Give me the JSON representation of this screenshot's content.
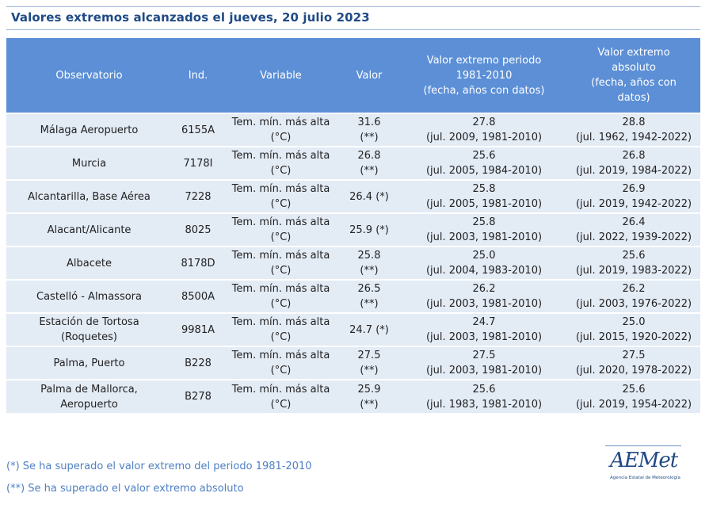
{
  "title": "Valores extremos alcanzados el jueves, 20 julio 2023",
  "headers": {
    "observatorio": "Observatorio",
    "ind": "Ind.",
    "variable": "Variable",
    "valor": "Valor",
    "periodo": [
      "Valor extremo periodo",
      "1981-2010",
      "(fecha, años con datos)"
    ],
    "absoluto": [
      "Valor extremo",
      "absoluto",
      "(fecha, años con",
      "datos)"
    ]
  },
  "rows": [
    {
      "obs": [
        "Málaga Aeropuerto"
      ],
      "ind": "6155A",
      "var": [
        "Tem. mín. más alta",
        "(°C)"
      ],
      "val": [
        "31.6",
        "(**)"
      ],
      "p1": [
        "27.8",
        "(jul. 2009, 1981-2010)"
      ],
      "p2": [
        "28.8",
        "(jul. 1962, 1942-2022)"
      ]
    },
    {
      "obs": [
        "Murcia"
      ],
      "ind": "7178I",
      "var": [
        "Tem. mín. más alta",
        "(°C)"
      ],
      "val": [
        "26.8",
        "(**)"
      ],
      "p1": [
        "25.6",
        "(jul. 2005, 1984-2010)"
      ],
      "p2": [
        "26.8",
        "(jul. 2019, 1984-2022)"
      ]
    },
    {
      "obs": [
        "Alcantarilla, Base Aérea"
      ],
      "ind": "7228",
      "var": [
        "Tem. mín. más alta",
        "(°C)"
      ],
      "val": [
        "26.4 (*)"
      ],
      "p1": [
        "25.8",
        "(jul. 2005, 1981-2010)"
      ],
      "p2": [
        "26.9",
        "(jul. 2019, 1942-2022)"
      ]
    },
    {
      "obs": [
        "Alacant/Alicante"
      ],
      "ind": "8025",
      "var": [
        "Tem. mín. más alta",
        "(°C)"
      ],
      "val": [
        "25.9 (*)"
      ],
      "p1": [
        "25.8",
        "(jul. 2003, 1981-2010)"
      ],
      "p2": [
        "26.4",
        "(jul. 2022, 1939-2022)"
      ]
    },
    {
      "obs": [
        "Albacete"
      ],
      "ind": "8178D",
      "var": [
        "Tem. mín. más alta",
        "(°C)"
      ],
      "val": [
        "25.8",
        "(**)"
      ],
      "p1": [
        "25.0",
        "(jul. 2004, 1983-2010)"
      ],
      "p2": [
        "25.6",
        "(jul. 2019, 1983-2022)"
      ]
    },
    {
      "obs": [
        "Castelló - Almassora"
      ],
      "ind": "8500A",
      "var": [
        "Tem. mín. más alta",
        "(°C)"
      ],
      "val": [
        "26.5",
        "(**)"
      ],
      "p1": [
        "26.2",
        "(jul. 2003, 1981-2010)"
      ],
      "p2": [
        "26.2",
        "(jul. 2003, 1976-2022)"
      ]
    },
    {
      "obs": [
        "Estación de Tortosa",
        "(Roquetes)"
      ],
      "ind": "9981A",
      "var": [
        "Tem. mín. más alta",
        "(°C)"
      ],
      "val": [
        "24.7 (*)"
      ],
      "p1": [
        "24.7",
        "(jul. 2003, 1981-2010)"
      ],
      "p2": [
        "25.0",
        "(jul. 2015, 1920-2022)"
      ]
    },
    {
      "obs": [
        "Palma, Puerto"
      ],
      "ind": "B228",
      "var": [
        "Tem. mín. más alta",
        "(°C)"
      ],
      "val": [
        "27.5",
        "(**)"
      ],
      "p1": [
        "27.5",
        "(jul. 2003, 1981-2010)"
      ],
      "p2": [
        "27.5",
        "(jul. 2020, 1978-2022)"
      ]
    },
    {
      "obs": [
        "Palma de Mallorca,",
        "Aeropuerto"
      ],
      "ind": "B278",
      "var": [
        "Tem. mín. más alta",
        "(°C)"
      ],
      "val": [
        "25.9",
        "(**)"
      ],
      "p1": [
        "25.6",
        "(jul. 1983, 1981-2010)"
      ],
      "p2": [
        "25.6",
        "(jul. 2019, 1954-2022)"
      ]
    }
  ],
  "footnotes": [
    "(*) Se ha superado el valor extremo del periodo 1981-2010",
    "(**) Se ha superado el valor extremo absoluto"
  ],
  "logo": {
    "name": "AEMet",
    "subtitle": "Agencia Estatal de Meteorología",
    "color": "#1f4a86"
  },
  "colors": {
    "header_bg": "#5c8fd6",
    "row_bg": "#e3ebf5",
    "title_text": "#1f4a86",
    "footnote_text": "#4f80c4"
  }
}
